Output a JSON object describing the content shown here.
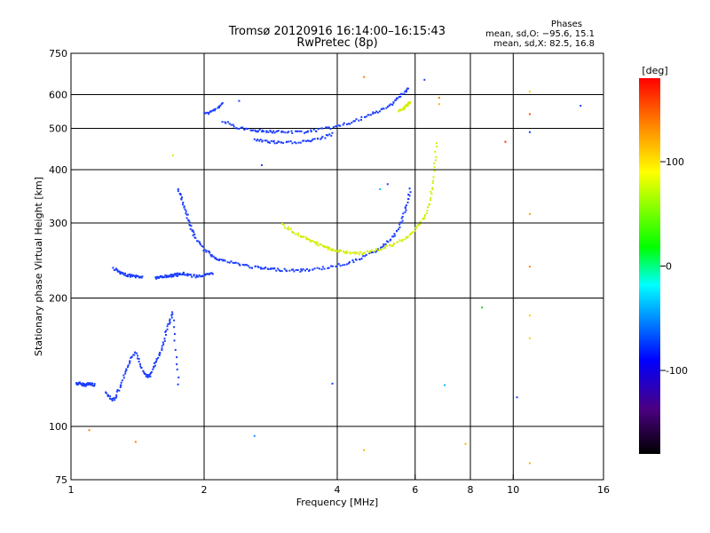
{
  "header": {
    "title_line1": "Tromsø 20120916 16:14:00–16:15:43",
    "title_line2": "RwPretec (8p)",
    "phases_title": "Phases",
    "phases_o": "mean, sd,O: −95.6, 15.1",
    "phases_x": "mean, sd,X:  82.5, 16.8"
  },
  "chart_data": {
    "type": "scatter",
    "title": "Tromsø 20120916 16:14:00–16:15:43",
    "subtitle": "RwPretec (8p)",
    "xlabel": "Frequency [MHz]",
    "ylabel": "Stationary phase Virtual Height [km]",
    "x_scale": "log",
    "y_scale": "log",
    "xlim": [
      1,
      16
    ],
    "ylim": [
      75,
      750
    ],
    "x_ticks": [
      1,
      2,
      4,
      6,
      8,
      10,
      16
    ],
    "x_tick_labels": [
      "1",
      "2",
      "4",
      "6",
      "8",
      "10",
      "16"
    ],
    "x_grid": [
      2,
      4,
      6,
      8,
      10
    ],
    "y_ticks": [
      75,
      100,
      200,
      300,
      400,
      500,
      600,
      750
    ],
    "y_tick_labels": [
      "75",
      "100",
      "200",
      "300",
      "400",
      "500",
      "600",
      "750"
    ],
    "y_grid": [
      100,
      200,
      300,
      400,
      500,
      600
    ],
    "grid": true,
    "colorbar": {
      "label": "deg",
      "min": -180,
      "max": 180,
      "ticks": [
        100,
        0,
        -100
      ],
      "tick_labels": [
        "100",
        "0",
        "-100"
      ]
    },
    "series": [
      {
        "name": "O",
        "color": "#1a3cff",
        "segments": [
          {
            "x": [
              1.03,
              1.05,
              1.08,
              1.1,
              1.13
            ],
            "y": [
              126,
              126,
              125,
              126,
              125
            ]
          },
          {
            "x": [
              1.2,
              1.25,
              1.3,
              1.35,
              1.4,
              1.45,
              1.5,
              1.55,
              1.6,
              1.65,
              1.7,
              1.75
            ],
            "y": [
              120,
              115,
              125,
              140,
              150,
              135,
              130,
              140,
              150,
              170,
              185,
              125
            ]
          },
          {
            "x": [
              1.25,
              1.3,
              1.35,
              1.4,
              1.45
            ],
            "y": [
              235,
              228,
              226,
              225,
              224
            ]
          },
          {
            "x": [
              1.55,
              1.6,
              1.65,
              1.7,
              1.75,
              1.8,
              1.9,
              2.0,
              2.1
            ],
            "y": [
              223,
              224,
              225,
              226,
              227,
              228,
              225,
              226,
              228
            ]
          },
          {
            "x": [
              1.75,
              1.8,
              1.85,
              1.9,
              2.0,
              2.1,
              2.2,
              2.4,
              2.6,
              2.8,
              3.0,
              3.3
            ],
            "y": [
              360,
              330,
              300,
              280,
              260,
              250,
              245,
              240,
              236,
              234,
              233,
              232
            ]
          },
          {
            "x": [
              3.3,
              3.6,
              4.0,
              4.4,
              4.8,
              5.2,
              5.5,
              5.7,
              5.85
            ],
            "y": [
              232,
              234,
              238,
              245,
              255,
              270,
              290,
              320,
              360
            ]
          },
          {
            "x": [
              2.6,
              2.8,
              3.0,
              3.3,
              3.6,
              3.9
            ],
            "y": [
              470,
              465,
              462,
              465,
              470,
              485
            ]
          },
          {
            "x": [
              2.2,
              2.4,
              2.6,
              2.8,
              3.0,
              3.3,
              3.6,
              4.0,
              4.4,
              4.8,
              5.2,
              5.5,
              5.8
            ],
            "y": [
              520,
              500,
              495,
              492,
              490,
              490,
              495,
              505,
              520,
              540,
              560,
              590,
              620
            ]
          },
          {
            "x": [
              2.0,
              2.1,
              2.2
            ],
            "y": [
              540,
              550,
              570
            ]
          }
        ]
      },
      {
        "name": "X",
        "color": "#d2ee00",
        "segments": [
          {
            "x": [
              3.0,
              3.2,
              3.4,
              3.6,
              3.8,
              4.0,
              4.3,
              4.6,
              5.0,
              5.4,
              5.8,
              6.1,
              6.4,
              6.6,
              6.7
            ],
            "y": [
              298,
              285,
              275,
              268,
              262,
              258,
              255,
              255,
              260,
              268,
              280,
              295,
              320,
              370,
              460
            ]
          },
          {
            "x": [
              5.5,
              5.7,
              5.85
            ],
            "y": [
              550,
              560,
              575
            ]
          }
        ]
      }
    ],
    "scattered_points": [
      {
        "x": 1.1,
        "y": 98,
        "color": "#ff7a00"
      },
      {
        "x": 1.4,
        "y": 92,
        "color": "#ff7a00"
      },
      {
        "x": 1.7,
        "y": 432,
        "color": "#e8e800"
      },
      {
        "x": 2.6,
        "y": 95,
        "color": "#1a8cff"
      },
      {
        "x": 2.4,
        "y": 580,
        "color": "#1a3cff"
      },
      {
        "x": 2.7,
        "y": 410,
        "color": "#1a3cff"
      },
      {
        "x": 3.9,
        "y": 126,
        "color": "#1a3cff"
      },
      {
        "x": 4.6,
        "y": 660,
        "color": "#ff7a00"
      },
      {
        "x": 4.6,
        "y": 88,
        "color": "#ffb000"
      },
      {
        "x": 5.0,
        "y": 360,
        "color": "#00c0ff"
      },
      {
        "x": 5.2,
        "y": 370,
        "color": "#1a3cff"
      },
      {
        "x": 6.3,
        "y": 650,
        "color": "#1a3cff"
      },
      {
        "x": 6.8,
        "y": 590,
        "color": "#ff7a00"
      },
      {
        "x": 6.8,
        "y": 570,
        "color": "#ffb000"
      },
      {
        "x": 7.0,
        "y": 125,
        "color": "#00b0ff"
      },
      {
        "x": 7.8,
        "y": 91,
        "color": "#ffb000"
      },
      {
        "x": 8.5,
        "y": 190,
        "color": "#20d020"
      },
      {
        "x": 9.6,
        "y": 465,
        "color": "#ff3000"
      },
      {
        "x": 10.2,
        "y": 117,
        "color": "#1a3cff"
      },
      {
        "x": 10.9,
        "y": 610,
        "color": "#ffd000"
      },
      {
        "x": 10.9,
        "y": 540,
        "color": "#ff5000"
      },
      {
        "x": 10.9,
        "y": 315,
        "color": "#ffa000"
      },
      {
        "x": 10.9,
        "y": 237,
        "color": "#ff8000"
      },
      {
        "x": 10.9,
        "y": 182,
        "color": "#ffd000"
      },
      {
        "x": 10.9,
        "y": 161,
        "color": "#ffd000"
      },
      {
        "x": 10.9,
        "y": 82,
        "color": "#ffb000"
      },
      {
        "x": 10.9,
        "y": 490,
        "color": "#1a3cff"
      },
      {
        "x": 14.2,
        "y": 565,
        "color": "#1a3cff"
      }
    ]
  }
}
